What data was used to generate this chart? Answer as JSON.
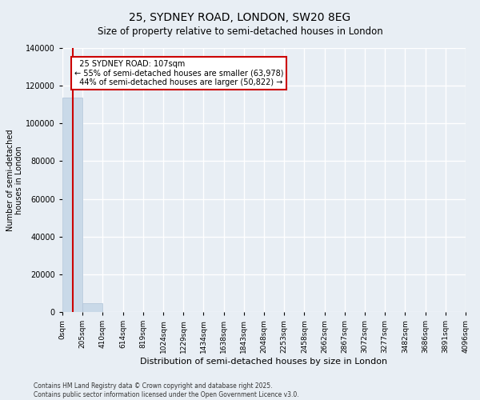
{
  "title": "25, SYDNEY ROAD, LONDON, SW20 8EG",
  "subtitle": "Size of property relative to semi-detached houses in London",
  "xlabel": "Distribution of semi-detached houses by size in London",
  "ylabel": "Number of semi-detached\nhouses in London",
  "property_size": 107,
  "property_label": "25 SYDNEY ROAD: 107sqm",
  "pct_smaller": 55,
  "pct_larger": 44,
  "n_smaller": 63978,
  "n_larger": 50822,
  "bar_color": "#c9d9e8",
  "bar_edge_color": "#b0c4d8",
  "line_color": "#cc0000",
  "annotation_box_color": "#cc0000",
  "background_color": "#e8eef4",
  "grid_color": "#ffffff",
  "bin_edges": [
    0,
    205,
    410,
    614,
    819,
    1024,
    1229,
    1434,
    1638,
    1843,
    2048,
    2253,
    2458,
    2662,
    2867,
    3072,
    3277,
    3482,
    3686,
    3891,
    4096
  ],
  "bar_heights": [
    113800,
    4800,
    0,
    0,
    0,
    0,
    0,
    0,
    0,
    0,
    0,
    0,
    0,
    0,
    0,
    0,
    0,
    0,
    0,
    0
  ],
  "ylim": [
    0,
    140000
  ],
  "yticks": [
    0,
    20000,
    40000,
    60000,
    80000,
    100000,
    120000,
    140000
  ],
  "footer": "Contains HM Land Registry data © Crown copyright and database right 2025.\nContains public sector information licensed under the Open Government Licence v3.0.",
  "bin_labels": [
    "0sqm",
    "205sqm",
    "410sqm",
    "614sqm",
    "819sqm",
    "1024sqm",
    "1229sqm",
    "1434sqm",
    "1638sqm",
    "1843sqm",
    "2048sqm",
    "2253sqm",
    "2458sqm",
    "2662sqm",
    "2867sqm",
    "3072sqm",
    "3277sqm",
    "3482sqm",
    "3686sqm",
    "3891sqm",
    "4096sqm"
  ],
  "fig_width": 6.0,
  "fig_height": 5.0,
  "title_fontsize": 10,
  "subtitle_fontsize": 8.5
}
